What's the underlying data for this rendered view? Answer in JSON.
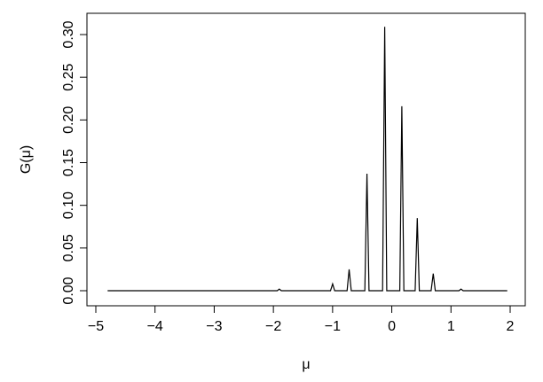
{
  "chart_data": {
    "type": "line",
    "title": "",
    "xlabel": "μ",
    "ylabel": "G(μ)",
    "xlim": [
      -5,
      2
    ],
    "ylim": [
      0,
      0.32
    ],
    "x_ticks": [
      -5,
      -4,
      -3,
      -2,
      -1,
      0,
      1,
      2
    ],
    "x_tick_labels": [
      "−5",
      "−4",
      "−3",
      "−2",
      "−1",
      "0",
      "1",
      "2"
    ],
    "y_ticks": [
      0,
      0.05,
      0.1,
      0.15,
      0.2,
      0.25,
      0.3
    ],
    "y_tick_labels": [
      "0.00",
      "0.05",
      "0.10",
      "0.15",
      "0.20",
      "0.25",
      "0.30"
    ],
    "grid": false,
    "legend": "none",
    "line_color": "#000000",
    "baseline": {
      "x_start": -4.8,
      "x_end": 1.95,
      "y": 0
    },
    "peaks": [
      {
        "x": -1.9,
        "y": 0.002
      },
      {
        "x": -1.0,
        "y": 0.008
      },
      {
        "x": -0.72,
        "y": 0.025
      },
      {
        "x": -0.42,
        "y": 0.137
      },
      {
        "x": -0.12,
        "y": 0.309
      },
      {
        "x": 0.17,
        "y": 0.216
      },
      {
        "x": 0.43,
        "y": 0.085
      },
      {
        "x": 0.7,
        "y": 0.02
      },
      {
        "x": 1.17,
        "y": 0.002
      }
    ]
  }
}
